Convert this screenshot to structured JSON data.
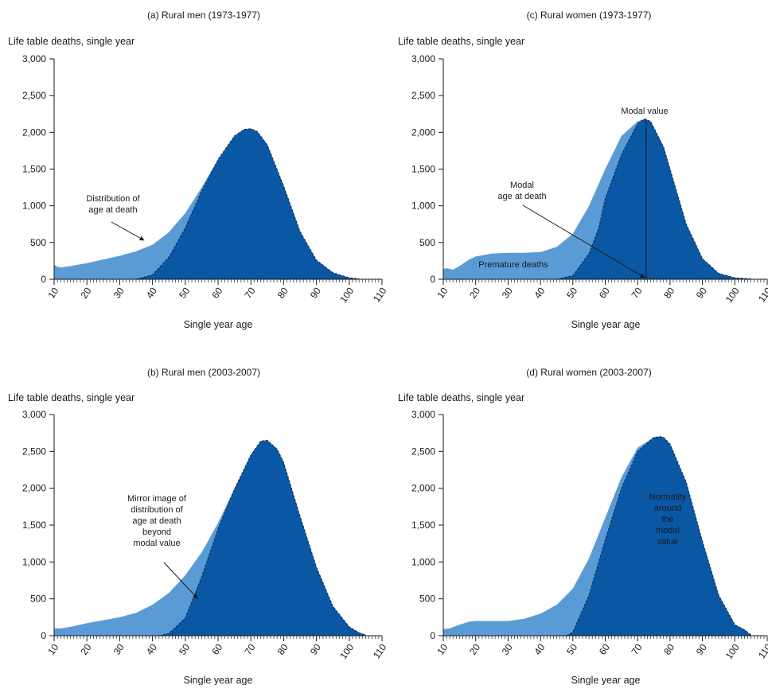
{
  "colors": {
    "light": "#5b9bd5",
    "dark": "#0a57a3",
    "axis": "#1a1a1a"
  },
  "chart_data": [
    {
      "type": "area",
      "title": "(a) Rural men (1973-1977)",
      "ylabel": "Life table deaths, single year",
      "xlabel": "Single year age",
      "xlim": [
        10,
        110
      ],
      "ylim": [
        0,
        3000
      ],
      "x_ticks": [
        "10",
        "20",
        "30",
        "40",
        "50",
        "60",
        "70",
        "80",
        "90",
        "100",
        "110"
      ],
      "y_ticks": [
        "0",
        "500",
        "1,000",
        "1,500",
        "2,000",
        "2,500",
        "3,000"
      ],
      "series": [
        {
          "shade": "light",
          "x": [
            10,
            11,
            12,
            15,
            20,
            25,
            30,
            35,
            40,
            45,
            50,
            55,
            60,
            65,
            68,
            70,
            72,
            75,
            80,
            85,
            90,
            95,
            100,
            103
          ],
          "values": [
            200,
            170,
            160,
            180,
            220,
            270,
            320,
            380,
            470,
            640,
            900,
            1250,
            1630,
            1950,
            2040,
            2050,
            2010,
            1830,
            1270,
            650,
            260,
            90,
            20,
            5
          ]
        },
        {
          "shade": "dark",
          "x": [
            35,
            40,
            45,
            50,
            55,
            60,
            65,
            68,
            70,
            72,
            75,
            80,
            85,
            90,
            95,
            100,
            103
          ],
          "values": [
            0,
            60,
            300,
            700,
            1200,
            1630,
            1950,
            2040,
            2050,
            2010,
            1830,
            1270,
            650,
            260,
            90,
            20,
            5
          ]
        }
      ],
      "annotations": [
        {
          "text": [
            "Distribution of",
            "age at death"
          ]
        }
      ]
    },
    {
      "type": "area",
      "title": "(b) Rural men (2003-2007)",
      "ylabel": "Life table deaths, single year",
      "xlabel": "Single year age",
      "xlim": [
        10,
        110
      ],
      "ylim": [
        0,
        3000
      ],
      "x_ticks": [
        "10",
        "20",
        "30",
        "40",
        "50",
        "60",
        "70",
        "80",
        "90",
        "100",
        "110"
      ],
      "y_ticks": [
        "0",
        "500",
        "1,000",
        "1,500",
        "2,000",
        "2,500",
        "3,000"
      ],
      "series": [
        {
          "shade": "light",
          "x": [
            10,
            12,
            15,
            20,
            25,
            30,
            35,
            40,
            45,
            50,
            55,
            60,
            65,
            70,
            73,
            75,
            78,
            80,
            85,
            90,
            95,
            100,
            103,
            105
          ],
          "values": [
            100,
            100,
            120,
            170,
            210,
            250,
            310,
            420,
            580,
            820,
            1130,
            1530,
            1990,
            2450,
            2640,
            2650,
            2530,
            2350,
            1620,
            930,
            400,
            120,
            40,
            10
          ]
        },
        {
          "shade": "dark",
          "x": [
            42,
            45,
            50,
            55,
            60,
            65,
            70,
            73,
            75,
            78,
            80,
            85,
            90,
            95,
            100,
            103,
            105
          ],
          "values": [
            0,
            30,
            240,
            800,
            1450,
            1990,
            2450,
            2640,
            2650,
            2530,
            2350,
            1620,
            930,
            400,
            120,
            40,
            10
          ]
        }
      ],
      "annotations": [
        {
          "text": [
            "Mirror image of",
            "distribution of",
            "age at death",
            "beyond",
            "modal value"
          ]
        }
      ]
    },
    {
      "type": "area",
      "title": "(c) Rural women (1973-1977)",
      "ylabel": "Life table deaths, single year",
      "xlabel": "Single year age",
      "xlim": [
        10,
        110
      ],
      "ylim": [
        0,
        3000
      ],
      "x_ticks": [
        "10",
        "20",
        "30",
        "40",
        "50",
        "60",
        "70",
        "80",
        "90",
        "100",
        "110"
      ],
      "y_ticks": [
        "0",
        "500",
        "1,000",
        "1,500",
        "2,000",
        "2,500",
        "3,000"
      ],
      "series": [
        {
          "shade": "light",
          "x": [
            10,
            11,
            13,
            15,
            18,
            20,
            25,
            30,
            35,
            40,
            45,
            50,
            55,
            60,
            65,
            70,
            72,
            74,
            78,
            80,
            85,
            90,
            95,
            100,
            105
          ],
          "values": [
            140,
            150,
            130,
            180,
            270,
            310,
            350,
            360,
            360,
            370,
            440,
            620,
            1000,
            1500,
            1950,
            2150,
            2180,
            2150,
            1800,
            1500,
            750,
            280,
            80,
            20,
            5
          ]
        },
        {
          "shade": "dark",
          "x": [
            45,
            50,
            55,
            58,
            60,
            65,
            70,
            72,
            74,
            78,
            80,
            85,
            90,
            95,
            100,
            105
          ],
          "values": [
            0,
            50,
            350,
            700,
            1100,
            1700,
            2120,
            2180,
            2150,
            1800,
            1500,
            750,
            280,
            80,
            20,
            5
          ]
        }
      ],
      "annotations": [
        {
          "text": [
            "Modal value"
          ]
        },
        {
          "text": [
            "Modal",
            "age at death"
          ]
        },
        {
          "text": [
            "Premature deaths"
          ]
        }
      ]
    },
    {
      "type": "area",
      "title": "(d) Rural women (2003-2007)",
      "ylabel": "Life table deaths, single year",
      "xlabel": "Single year age",
      "xlim": [
        10,
        110
      ],
      "ylim": [
        0,
        3000
      ],
      "x_ticks": [
        "10",
        "20",
        "30",
        "40",
        "50",
        "60",
        "70",
        "80",
        "90",
        "100",
        "110"
      ],
      "y_ticks": [
        "0",
        "500",
        "1,000",
        "1,500",
        "2,000",
        "2,500",
        "3,000"
      ],
      "series": [
        {
          "shade": "light",
          "x": [
            10,
            12,
            15,
            18,
            20,
            25,
            30,
            35,
            40,
            45,
            50,
            55,
            60,
            65,
            70,
            75,
            77,
            78,
            80,
            85,
            90,
            95,
            100,
            103,
            105
          ],
          "values": [
            90,
            100,
            150,
            190,
            200,
            200,
            200,
            230,
            300,
            420,
            640,
            1050,
            1600,
            2150,
            2550,
            2690,
            2700,
            2690,
            2600,
            2080,
            1280,
            550,
            150,
            80,
            10
          ]
        },
        {
          "shade": "dark",
          "x": [
            48,
            50,
            55,
            60,
            65,
            70,
            75,
            77,
            78,
            80,
            85,
            90,
            95,
            100,
            103,
            105
          ],
          "values": [
            0,
            50,
            550,
            1300,
            2000,
            2500,
            2690,
            2700,
            2690,
            2600,
            2080,
            1280,
            550,
            150,
            80,
            10
          ]
        }
      ],
      "annotations": [
        {
          "text": [
            "Normality",
            "around",
            "the",
            "modal",
            "value"
          ]
        }
      ]
    }
  ]
}
